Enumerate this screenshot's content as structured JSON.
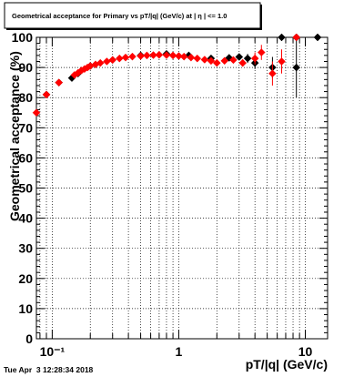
{
  "chart_data": {
    "type": "scatter",
    "title": "Geometrical acceptance for Primary vs pT/|q| (GeV/c) at | η | <= 1.0",
    "xlabel": "pT/|q| (GeV/c)",
    "ylabel": "Geometrical acceptance (%)",
    "xscale": "log",
    "xlim": [
      0.075,
      15
    ],
    "ylim": [
      0,
      100
    ],
    "x_ticks": [
      {
        "value": 0.1,
        "label": "10⁻¹"
      },
      {
        "value": 1,
        "label": "1"
      },
      {
        "value": 10,
        "label": "10"
      }
    ],
    "y_ticks": [
      0,
      10,
      20,
      30,
      40,
      50,
      60,
      70,
      80,
      90,
      100
    ],
    "grid": true,
    "timestamp": "Tue Apr  3 12:28:34 2018",
    "series": [
      {
        "color": "#000000",
        "marker": "diamond",
        "points": [
          {
            "x": 0.09,
            "y": 81,
            "err": 0.5
          },
          {
            "x": 0.113,
            "y": 85,
            "err": 0.5
          },
          {
            "x": 0.143,
            "y": 86.5,
            "err": 0.4
          },
          {
            "x": 0.16,
            "y": 88,
            "err": 0.3
          },
          {
            "x": 0.2,
            "y": 90.5,
            "err": 0.3
          },
          {
            "x": 0.3,
            "y": 92.5,
            "err": 0.3
          },
          {
            "x": 0.5,
            "y": 94,
            "err": 0.3
          },
          {
            "x": 0.8,
            "y": 94.5,
            "err": 0.3
          },
          {
            "x": 1.2,
            "y": 94,
            "err": 0.3
          },
          {
            "x": 1.8,
            "y": 93,
            "err": 0.4
          },
          {
            "x": 2.5,
            "y": 93.2,
            "err": 0.6
          },
          {
            "x": 3.0,
            "y": 93.5,
            "err": 1
          },
          {
            "x": 3.5,
            "y": 93,
            "err": 1.5
          },
          {
            "x": 4.0,
            "y": 91.5,
            "err": 2
          },
          {
            "x": 5.5,
            "y": 90,
            "err": 3.5
          },
          {
            "x": 6.5,
            "y": 100,
            "err": 0
          },
          {
            "x": 8.5,
            "y": 90,
            "err": 10
          },
          {
            "x": 8.5,
            "y": 100,
            "err": 0
          },
          {
            "x": 12.5,
            "y": 100,
            "err": 0
          }
        ]
      },
      {
        "color": "#ff0000",
        "marker": "diamond",
        "points": [
          {
            "x": 0.075,
            "y": 75,
            "err": 0.6
          },
          {
            "x": 0.09,
            "y": 81,
            "err": 0.5
          },
          {
            "x": 0.113,
            "y": 85,
            "err": 0.5
          },
          {
            "x": 0.15,
            "y": 87.5,
            "err": 0.4
          },
          {
            "x": 0.16,
            "y": 88.2,
            "err": 0.3
          },
          {
            "x": 0.17,
            "y": 89,
            "err": 0.3
          },
          {
            "x": 0.18,
            "y": 89.5,
            "err": 0.3
          },
          {
            "x": 0.19,
            "y": 90,
            "err": 0.3
          },
          {
            "x": 0.2,
            "y": 90.5,
            "err": 0.3
          },
          {
            "x": 0.22,
            "y": 91,
            "err": 0.3
          },
          {
            "x": 0.24,
            "y": 91.5,
            "err": 0.3
          },
          {
            "x": 0.27,
            "y": 92,
            "err": 0.3
          },
          {
            "x": 0.3,
            "y": 92.5,
            "err": 0.3
          },
          {
            "x": 0.34,
            "y": 93,
            "err": 0.3
          },
          {
            "x": 0.38,
            "y": 93.3,
            "err": 0.3
          },
          {
            "x": 0.43,
            "y": 93.6,
            "err": 0.3
          },
          {
            "x": 0.5,
            "y": 93.8,
            "err": 0.3
          },
          {
            "x": 0.56,
            "y": 94,
            "err": 0.3
          },
          {
            "x": 0.63,
            "y": 94.1,
            "err": 0.3
          },
          {
            "x": 0.7,
            "y": 94.2,
            "err": 0.3
          },
          {
            "x": 0.8,
            "y": 94.1,
            "err": 0.3
          },
          {
            "x": 0.9,
            "y": 94,
            "err": 0.3
          },
          {
            "x": 1.0,
            "y": 93.8,
            "err": 0.3
          },
          {
            "x": 1.1,
            "y": 93.6,
            "err": 0.3
          },
          {
            "x": 1.25,
            "y": 93.3,
            "err": 0.4
          },
          {
            "x": 1.4,
            "y": 93,
            "err": 0.4
          },
          {
            "x": 1.6,
            "y": 92.6,
            "err": 0.4
          },
          {
            "x": 1.8,
            "y": 92.2,
            "err": 0.5
          },
          {
            "x": 2.0,
            "y": 91.5,
            "err": 0.6
          },
          {
            "x": 2.3,
            "y": 92.2,
            "err": 0.7
          },
          {
            "x": 2.7,
            "y": 92.5,
            "err": 0.9
          },
          {
            "x": 3.2,
            "y": 91.5,
            "err": 1.2
          },
          {
            "x": 4.0,
            "y": 93,
            "err": 2
          },
          {
            "x": 4.5,
            "y": 95,
            "err": 2.5
          },
          {
            "x": 5.5,
            "y": 88,
            "err": 4
          },
          {
            "x": 6.5,
            "y": 92,
            "err": 4
          },
          {
            "x": 8.5,
            "y": 100,
            "err": 0
          }
        ]
      }
    ]
  }
}
